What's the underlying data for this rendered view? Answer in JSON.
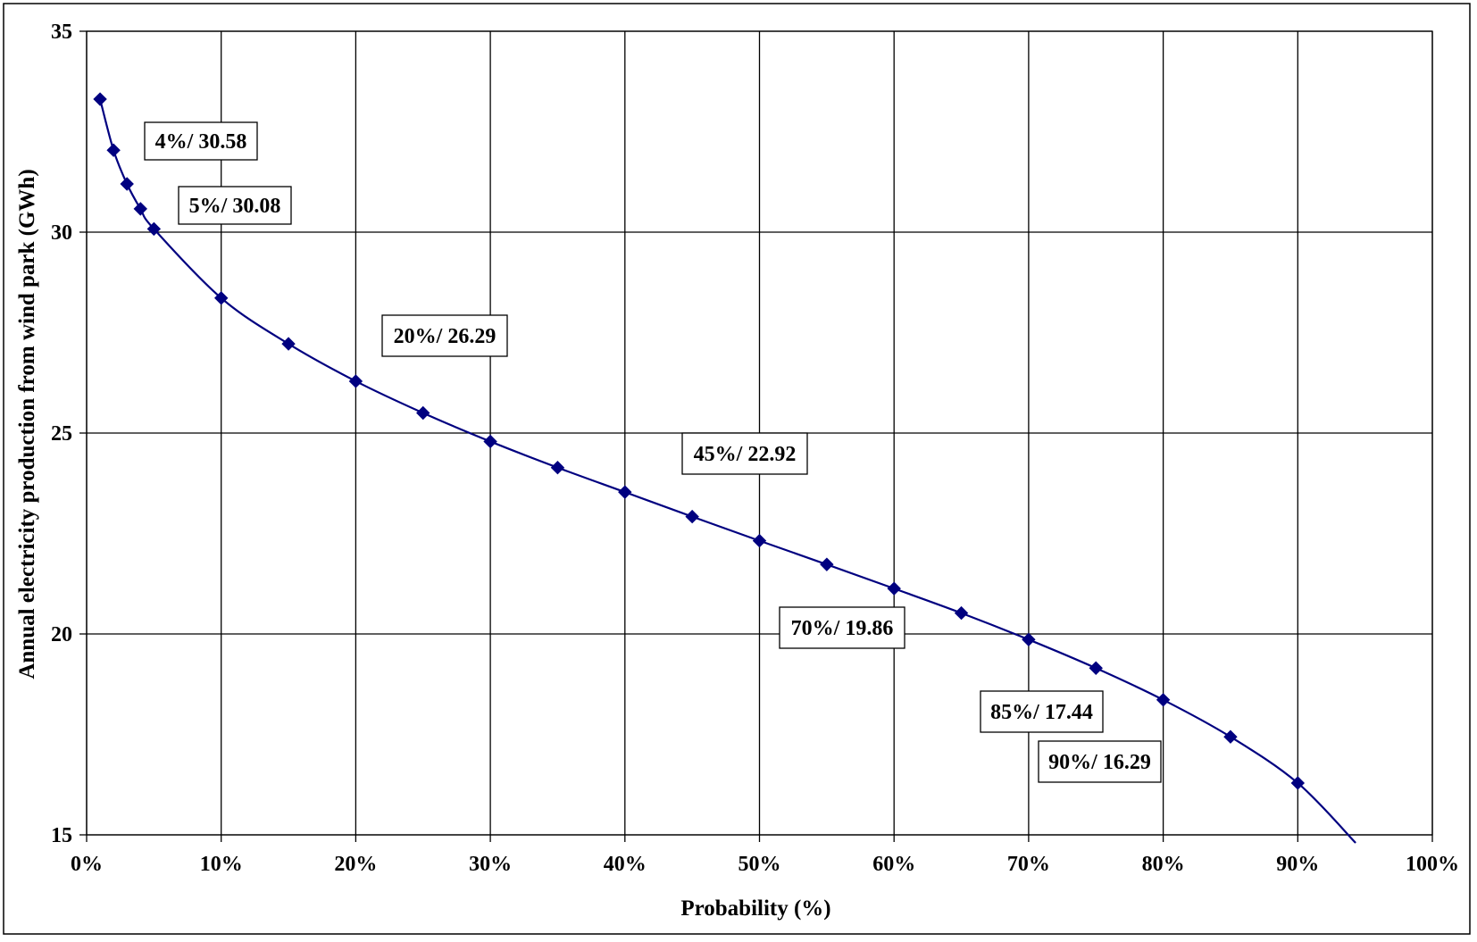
{
  "chart_data": {
    "type": "line",
    "title": "",
    "xlabel": "Probability (%)",
    "ylabel": "Annual electricity production from wind park (GWh)",
    "xlim": [
      0,
      100
    ],
    "ylim": [
      15,
      35
    ],
    "x_ticks": [
      0,
      10,
      20,
      30,
      40,
      50,
      60,
      70,
      80,
      90,
      100
    ],
    "x_tick_labels": [
      "0%",
      "10%",
      "20%",
      "30%",
      "40%",
      "50%",
      "60%",
      "70%",
      "80%",
      "90%",
      "100%"
    ],
    "y_ticks": [
      15,
      20,
      25,
      30,
      35
    ],
    "y_tick_labels": [
      "15",
      "20",
      "25",
      "30",
      "35"
    ],
    "grid": true,
    "legend": "none",
    "series": [
      {
        "color": "#000080",
        "marker": "diamond",
        "x": [
          1,
          2,
          3,
          4,
          5,
          10,
          15,
          20,
          25,
          30,
          35,
          40,
          45,
          50,
          55,
          60,
          65,
          70,
          75,
          80,
          85,
          90,
          94.3
        ],
        "y": [
          33.31,
          32.04,
          31.2,
          30.58,
          30.08,
          28.36,
          27.22,
          26.29,
          25.5,
          24.79,
          24.14,
          23.53,
          22.92,
          22.32,
          21.73,
          21.13,
          20.52,
          19.86,
          19.15,
          18.36,
          17.44,
          16.29,
          14.8
        ],
        "marker_count": 22
      }
    ],
    "annotations": [
      {
        "text": "4%/ 30.58",
        "x": 4,
        "y": 30.58
      },
      {
        "text": "5%/ 30.08",
        "x": 5,
        "y": 30.08
      },
      {
        "text": "20%/ 26.29",
        "x": 20,
        "y": 26.29
      },
      {
        "text": "45%/ 22.92",
        "x": 45,
        "y": 22.92
      },
      {
        "text": "70%/ 19.86",
        "x": 70,
        "y": 19.86
      },
      {
        "text": "85%/ 17.44",
        "x": 85,
        "y": 17.44
      },
      {
        "text": "90%/ 16.29",
        "x": 90,
        "y": 16.29
      }
    ]
  }
}
